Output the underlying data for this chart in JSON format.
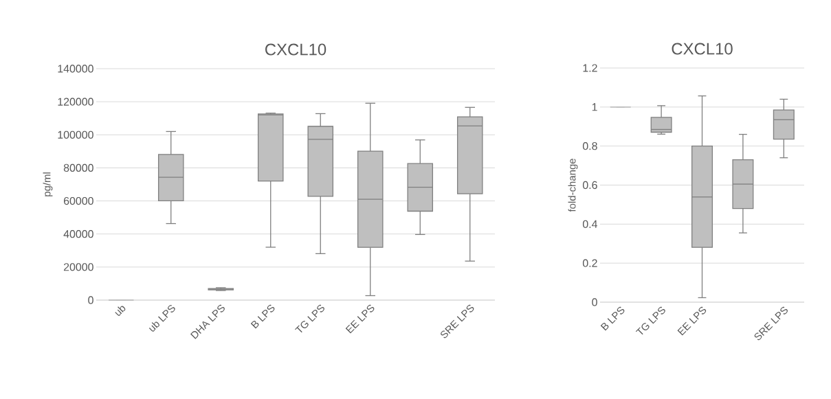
{
  "chart_data": [
    {
      "type": "box",
      "title": "CXCL10",
      "ylabel": "pg/ml",
      "categories": [
        "ub",
        "ub LPS",
        "DHA LPS",
        "B LPS",
        "TG LPS",
        "EE LPS",
        null,
        "SRE LPS"
      ],
      "ylim": [
        0,
        140000
      ],
      "yticks": [
        0,
        20000,
        40000,
        60000,
        80000,
        100000,
        120000,
        140000
      ],
      "grid": "y",
      "series": [
        {
          "color": "#bfbfbf",
          "boxes": [
            {
              "low": 0,
              "q1": 0,
              "median": 0,
              "q3": 0,
              "high": 0
            },
            {
              "low": 46300,
              "q1": 60100,
              "median": 74300,
              "q3": 88100,
              "high": 102000
            },
            {
              "low": 5800,
              "q1": 6200,
              "median": 6600,
              "q3": 7000,
              "high": 7500
            },
            {
              "low": 32000,
              "q1": 72000,
              "median": 112000,
              "q3": 112600,
              "high": 113100
            },
            {
              "low": 28100,
              "q1": 62800,
              "median": 97300,
              "q3": 105100,
              "high": 112800
            },
            {
              "low": 2700,
              "q1": 31900,
              "median": 61000,
              "q3": 90100,
              "high": 119100
            },
            {
              "low": 39700,
              "q1": 53800,
              "median": 68300,
              "q3": 82600,
              "high": 96900
            },
            {
              "low": 23600,
              "q1": 64300,
              "median": 105400,
              "q3": 110900,
              "high": 116600
            }
          ]
        }
      ]
    },
    {
      "type": "box",
      "title": "CXCL10",
      "ylabel": "fold-change",
      "categories": [
        "B LPS",
        "TG LPS",
        "EE LPS",
        null,
        "SRE LPS"
      ],
      "ylim": [
        0,
        1.2
      ],
      "yticks": [
        0,
        0.2,
        0.4,
        0.6,
        0.8,
        1,
        1.2
      ],
      "grid": "y",
      "series": [
        {
          "color": "#bfbfbf",
          "boxes": [
            {
              "low": 1,
              "q1": 1,
              "median": 1,
              "q3": 1,
              "high": 1
            },
            {
              "low": 0.861,
              "q1": 0.871,
              "median": 0.885,
              "q3": 0.947,
              "high": 1.007
            },
            {
              "low": 0.023,
              "q1": 0.281,
              "median": 0.539,
              "q3": 0.8,
              "high": 1.057
            },
            {
              "low": 0.355,
              "q1": 0.48,
              "median": 0.605,
              "q3": 0.73,
              "high": 0.86
            },
            {
              "low": 0.74,
              "q1": 0.835,
              "median": 0.935,
              "q3": 0.985,
              "high": 1.04
            }
          ]
        }
      ]
    }
  ]
}
